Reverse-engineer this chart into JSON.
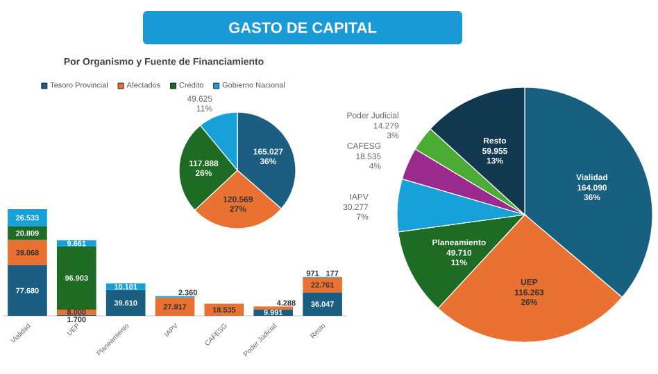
{
  "chart_data": [
    {
      "type": "bar",
      "title": "GASTO DE CAPITAL",
      "subtitle": "Por Organismo y Fuente de Financiamiento",
      "stacked": true,
      "legend": "top",
      "tick_labels": "x",
      "categories": [
        "Vialidad",
        "UEP",
        "Planeamiento",
        "IAPV",
        "CAFESG",
        "Poder Judicial",
        "Resto"
      ],
      "series": [
        {
          "name": "Tesoro Provincial",
          "color": "#1b5e82",
          "values": [
            77680,
            1700,
            39610,
            null,
            null,
            9991,
            36047
          ],
          "value_labels": [
            "77.680",
            "1.700",
            "39.610",
            null,
            null,
            "9.991",
            "36.047"
          ]
        },
        {
          "name": "Afectados",
          "color": "#e97132",
          "values": [
            39068,
            8000,
            null,
            27917,
            18535,
            4288,
            22761
          ],
          "value_labels": [
            "39.068",
            "8.000",
            null,
            "27.917",
            "18.535",
            "4.288",
            "22.761"
          ]
        },
        {
          "name": "Crédito",
          "color": "#1e6b24",
          "values": [
            20809,
            96903,
            null,
            null,
            null,
            null,
            177
          ],
          "value_labels": [
            "20.809",
            "96.903",
            null,
            null,
            null,
            null,
            "177"
          ]
        },
        {
          "name": "Gobierno Nacional",
          "color": "#18a0d8",
          "values": [
            26533,
            9661,
            10101,
            2360,
            null,
            null,
            971
          ],
          "value_labels": [
            "26.533",
            "9.661",
            "10.101",
            "2.360",
            null,
            null,
            "971"
          ]
        }
      ]
    },
    {
      "type": "pie",
      "categories": [
        null,
        null,
        null,
        null
      ],
      "values": [
        165027,
        120569,
        117888,
        49625
      ],
      "colors": [
        "#1b5e82",
        "#e97132",
        "#1e6b24",
        "#18a0d8"
      ],
      "value_labels": [
        "165.027 36%",
        "120.569 27%",
        "117.888 26%",
        "49.625 11%"
      ]
    },
    {
      "type": "pie",
      "categories": [
        "Vialidad",
        "UEP",
        "Planeamiento",
        "IAPV",
        "CAFESG",
        "Poder Judicial",
        "Resto"
      ],
      "values": [
        164090,
        116263,
        49710,
        30277,
        18535,
        14279,
        59955
      ],
      "colors": [
        "#17607f",
        "#e97132",
        "#1e6b24",
        "#18a0d8",
        "#9b2a8e",
        "#4aac32",
        "#12394f"
      ],
      "value_labels": [
        "164.090 36%",
        "116.263 26%",
        "49.710 11%",
        "30.277 7%",
        "18.535 4%",
        "14.279 3%",
        "59.955 13%"
      ]
    }
  ]
}
